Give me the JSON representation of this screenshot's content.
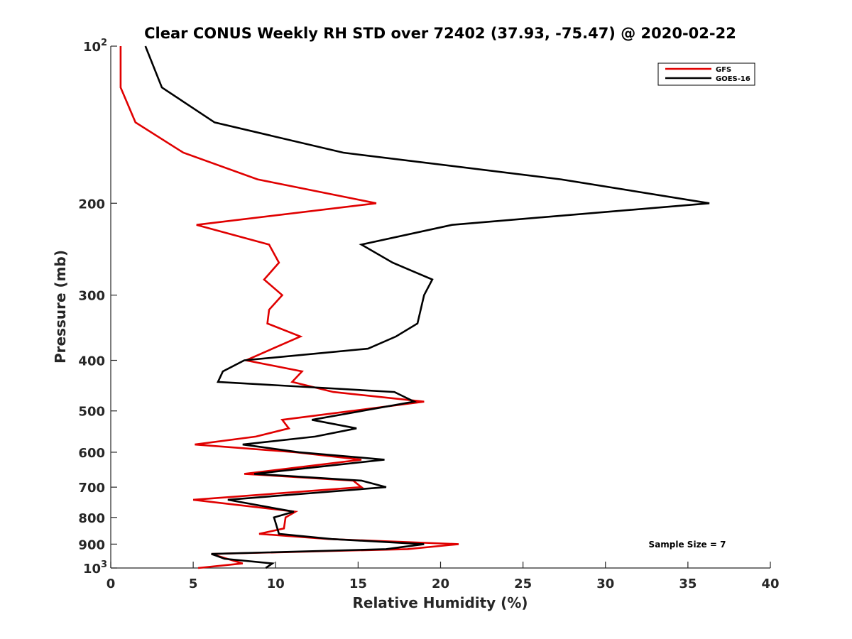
{
  "chart_data": {
    "type": "line",
    "title": "Clear CONUS Weekly RH STD over 72402 (37.93, -75.47) @ 2020-02-22",
    "xlabel": "Relative Humidity (%)",
    "ylabel": "Pressure (mb)",
    "xlim": [
      0,
      40
    ],
    "ylim": [
      1000,
      100
    ],
    "yscale": "log",
    "y_reversed": true,
    "grid": false,
    "x_ticks": [
      0,
      5,
      10,
      15,
      20,
      25,
      30,
      35,
      40
    ],
    "x_tick_labels": [
      "0",
      "5",
      "10",
      "15",
      "20",
      "25",
      "30",
      "35",
      "40"
    ],
    "y_ticks": [
      100,
      200,
      300,
      400,
      500,
      600,
      700,
      800,
      900,
      1000
    ],
    "y_tick_labels": [
      "10",
      "200",
      "300",
      "400",
      "500",
      "600",
      "700",
      "800",
      "900",
      "10"
    ],
    "y_tick_exponents": [
      "2",
      "",
      "",
      "",
      "",
      "",
      "",
      "",
      "",
      "3"
    ],
    "legend_position": "top-right",
    "series": [
      {
        "name": "GFS",
        "color": "#e00000",
        "points": [
          [
            0.6,
            100
          ],
          [
            0.6,
            120
          ],
          [
            1.5,
            140
          ],
          [
            4.4,
            160
          ],
          [
            8.9,
            180
          ],
          [
            16.1,
            200
          ],
          [
            5.2,
            220
          ],
          [
            9.6,
            240
          ],
          [
            10.2,
            260
          ],
          [
            9.3,
            280
          ],
          [
            10.4,
            300
          ],
          [
            9.6,
            320
          ],
          [
            9.5,
            340
          ],
          [
            11.5,
            360
          ],
          [
            8.2,
            400
          ],
          [
            11.6,
            420
          ],
          [
            11.0,
            440
          ],
          [
            13.5,
            460
          ],
          [
            19.0,
            480
          ],
          [
            10.4,
            520
          ],
          [
            10.8,
            540
          ],
          [
            8.8,
            560
          ],
          [
            5.1,
            580
          ],
          [
            11.2,
            600
          ],
          [
            15.2,
            620
          ],
          [
            8.1,
            660
          ],
          [
            14.7,
            680
          ],
          [
            15.2,
            700
          ],
          [
            5.0,
            740
          ],
          [
            11.2,
            780
          ],
          [
            10.6,
            800
          ],
          [
            10.5,
            840
          ],
          [
            9.0,
            860
          ],
          [
            13.2,
            880
          ],
          [
            21.1,
            900
          ],
          [
            18.0,
            920
          ],
          [
            6.1,
            940
          ],
          [
            8.0,
            980
          ],
          [
            5.3,
            1000
          ]
        ]
      },
      {
        "name": "GOES-16",
        "color": "#000000",
        "points": [
          [
            2.1,
            100
          ],
          [
            3.1,
            120
          ],
          [
            6.3,
            140
          ],
          [
            14.1,
            160
          ],
          [
            27.3,
            180
          ],
          [
            36.3,
            200
          ],
          [
            20.7,
            220
          ],
          [
            15.2,
            240
          ],
          [
            17.1,
            260
          ],
          [
            19.5,
            280
          ],
          [
            19.0,
            300
          ],
          [
            18.6,
            340
          ],
          [
            17.3,
            360
          ],
          [
            15.6,
            380
          ],
          [
            8.1,
            400
          ],
          [
            6.8,
            420
          ],
          [
            6.5,
            440
          ],
          [
            17.2,
            460
          ],
          [
            18.4,
            480
          ],
          [
            12.2,
            520
          ],
          [
            14.9,
            540
          ],
          [
            12.4,
            560
          ],
          [
            8.0,
            580
          ],
          [
            11.4,
            600
          ],
          [
            16.6,
            620
          ],
          [
            8.7,
            660
          ],
          [
            15.2,
            680
          ],
          [
            16.7,
            700
          ],
          [
            7.1,
            740
          ],
          [
            11.1,
            780
          ],
          [
            9.9,
            800
          ],
          [
            10.2,
            860
          ],
          [
            13.4,
            880
          ],
          [
            19.0,
            900
          ],
          [
            16.7,
            920
          ],
          [
            6.1,
            940
          ],
          [
            6.9,
            960
          ],
          [
            9.8,
            980
          ],
          [
            9.4,
            1000
          ]
        ]
      }
    ],
    "annotations": [
      {
        "text": "Sample Size = 7",
        "position": "bottom-right"
      }
    ]
  }
}
